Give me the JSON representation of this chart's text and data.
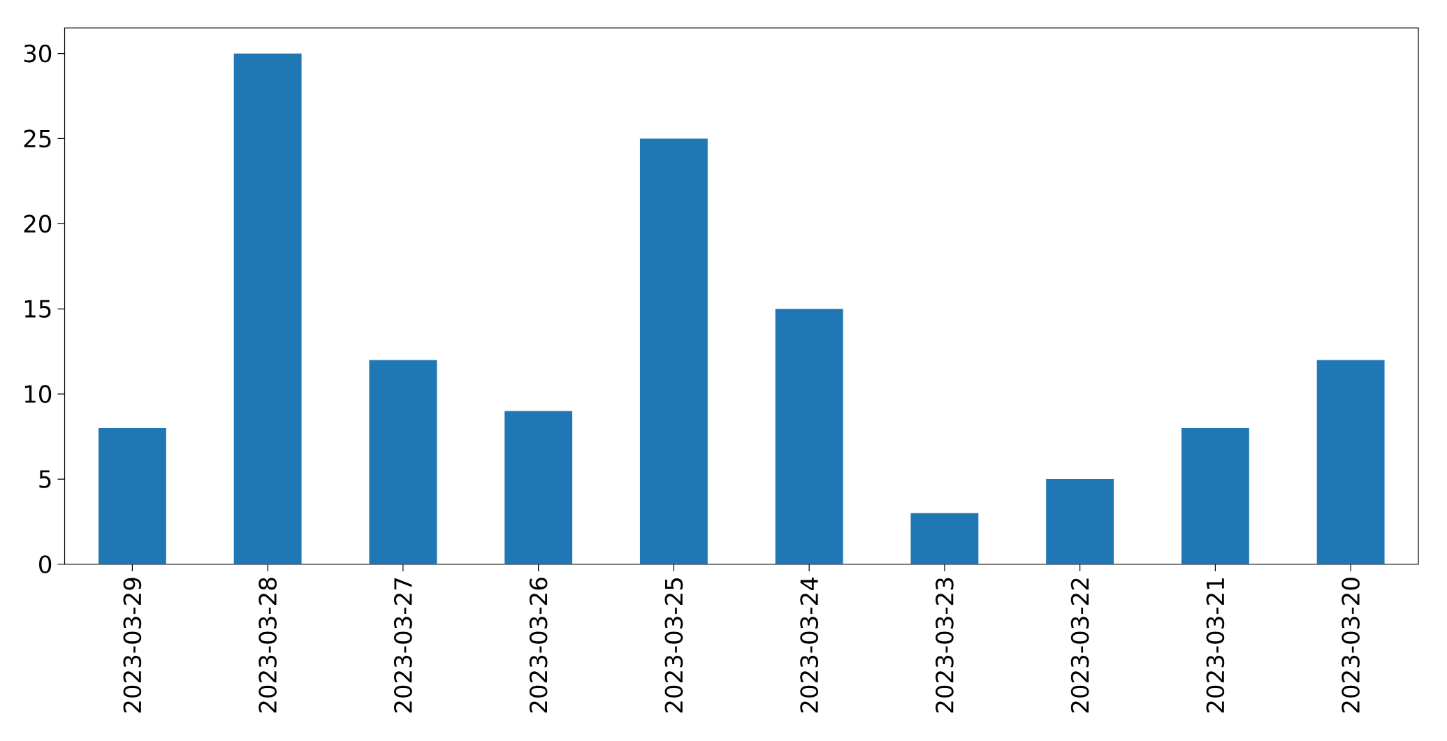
{
  "chart_data": {
    "type": "bar",
    "categories": [
      "2023-03-29",
      "2023-03-28",
      "2023-03-27",
      "2023-03-26",
      "2023-03-25",
      "2023-03-24",
      "2023-03-23",
      "2023-03-22",
      "2023-03-21",
      "2023-03-20"
    ],
    "values": [
      8,
      30,
      12,
      9,
      25,
      15,
      3,
      5,
      8,
      12
    ],
    "color": "#1f77b4",
    "ylim": [
      0,
      31.5
    ],
    "yticks": [
      0,
      5,
      10,
      15,
      20,
      25,
      30
    ]
  }
}
